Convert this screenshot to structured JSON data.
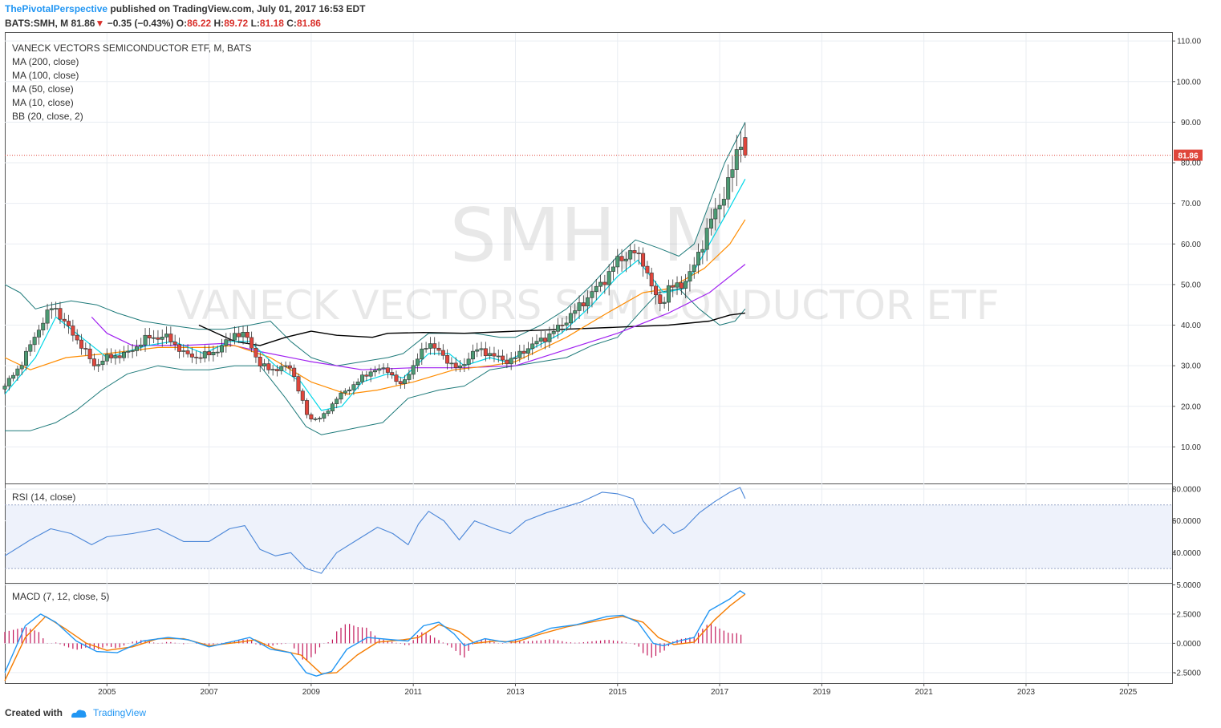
{
  "header": {
    "author": "ThePivotalPerspective",
    "published": "published on TradingView.com, July 01, 2017 16:53 EDT"
  },
  "ohlc": {
    "symbol": "BATS:SMH, M",
    "last": "81.86",
    "arrow": "▼",
    "change": "−0.35 (−0.43%)",
    "o_label": "O:",
    "o": "86.22",
    "h_label": "H:",
    "h": "89.72",
    "l_label": "L:",
    "l": "81.18",
    "c_label": "C:",
    "c": "81.86"
  },
  "footer": {
    "created": "Created with",
    "brand": "TradingView"
  },
  "chart_data": {
    "type": "candlestick",
    "legend": {
      "title": "VANECK VECTORS SEMICONDUCTOR ETF, M, BATS",
      "indicators": [
        "MA (200, close)",
        "MA (100, close)",
        "MA (50, close)",
        "MA (10, close)",
        "BB (20, close, 2)"
      ]
    },
    "watermark": {
      "symbol": "SMH, M",
      "name": "VANECK VECTORS SEMICONDUCTOR ETF"
    },
    "x_axis": {
      "ticks": [
        2005,
        2007,
        2009,
        2011,
        2013,
        2015,
        2017,
        2019,
        2021,
        2023,
        2025
      ],
      "range": [
        2003.0,
        2025.86
      ]
    },
    "price_panel": {
      "y_ticks": [
        "110.00",
        "100.00",
        "90.00",
        "80.00",
        "70.00",
        "60.00",
        "50.00",
        "40.00",
        "30.00",
        "20.00",
        "10.00"
      ],
      "ylim": [
        1.0,
        112.0
      ],
      "last_price_label": "81.86",
      "anchors": [
        [
          2003.0,
          25
        ],
        [
          2003.3,
          30
        ],
        [
          2003.7,
          40
        ],
        [
          2003.95,
          45
        ],
        [
          2004.2,
          40
        ],
        [
          2004.5,
          35
        ],
        [
          2004.75,
          30
        ],
        [
          2005.0,
          32
        ],
        [
          2005.4,
          33
        ],
        [
          2005.8,
          37
        ],
        [
          2006.2,
          37
        ],
        [
          2006.5,
          33
        ],
        [
          2006.8,
          32
        ],
        [
          2007.2,
          34
        ],
        [
          2007.5,
          38
        ],
        [
          2007.75,
          37
        ],
        [
          2008.0,
          30
        ],
        [
          2008.3,
          29
        ],
        [
          2008.6,
          30
        ],
        [
          2008.8,
          22
        ],
        [
          2008.95,
          17
        ],
        [
          2009.2,
          17
        ],
        [
          2009.5,
          22
        ],
        [
          2009.8,
          25
        ],
        [
          2010.2,
          29
        ],
        [
          2010.5,
          29
        ],
        [
          2010.75,
          25
        ],
        [
          2011.0,
          30
        ],
        [
          2011.3,
          36
        ],
        [
          2011.6,
          32
        ],
        [
          2011.9,
          29
        ],
        [
          2012.2,
          34
        ],
        [
          2012.5,
          33
        ],
        [
          2012.8,
          31
        ],
        [
          2013.0,
          32
        ],
        [
          2013.3,
          35
        ],
        [
          2013.6,
          37
        ],
        [
          2013.9,
          40
        ],
        [
          2014.2,
          44
        ],
        [
          2014.5,
          48
        ],
        [
          2014.8,
          52
        ],
        [
          2015.0,
          56
        ],
        [
          2015.3,
          58
        ],
        [
          2015.5,
          56
        ],
        [
          2015.7,
          48
        ],
        [
          2015.85,
          45
        ],
        [
          2016.0,
          49
        ],
        [
          2016.25,
          50
        ],
        [
          2016.45,
          53
        ],
        [
          2016.6,
          58
        ],
        [
          2016.8,
          65
        ],
        [
          2017.0,
          70
        ],
        [
          2017.2,
          76
        ],
        [
          2017.35,
          83
        ],
        [
          2017.42,
          86
        ],
        [
          2017.5,
          81.86
        ]
      ],
      "ma200": [
        [
          2006.8,
          40
        ],
        [
          2007.5,
          36
        ],
        [
          2008.0,
          35
        ],
        [
          2008.5,
          37
        ],
        [
          2009.0,
          38.5
        ],
        [
          2009.5,
          37.5
        ],
        [
          2010.2,
          37
        ],
        [
          2010.5,
          38
        ],
        [
          2011.2,
          38.2
        ],
        [
          2012.0,
          38
        ],
        [
          2013.0,
          38.5
        ],
        [
          2014.0,
          39
        ],
        [
          2015.0,
          39.5
        ],
        [
          2016.0,
          40
        ],
        [
          2016.8,
          41
        ],
        [
          2017.2,
          42.5
        ],
        [
          2017.5,
          43
        ]
      ],
      "ma100": [
        [
          2004.7,
          42
        ],
        [
          2005.0,
          38
        ],
        [
          2005.5,
          35
        ],
        [
          2006.5,
          35
        ],
        [
          2007.3,
          35.5
        ],
        [
          2008.0,
          33.5
        ],
        [
          2009.0,
          31
        ],
        [
          2010.0,
          29
        ],
        [
          2011.0,
          29.5
        ],
        [
          2012.0,
          29.5
        ],
        [
          2013.0,
          30
        ],
        [
          2014.0,
          34
        ],
        [
          2015.0,
          38
        ],
        [
          2016.0,
          43
        ],
        [
          2016.8,
          48
        ],
        [
          2017.5,
          55
        ]
      ],
      "ma50": [
        [
          2003.0,
          32
        ],
        [
          2003.5,
          29
        ],
        [
          2004.2,
          32
        ],
        [
          2005.0,
          33
        ],
        [
          2006.0,
          34.5
        ],
        [
          2007.0,
          34.5
        ],
        [
          2007.5,
          35
        ],
        [
          2008.2,
          32
        ],
        [
          2009.0,
          26
        ],
        [
          2009.7,
          23
        ],
        [
          2010.3,
          24
        ],
        [
          2011.0,
          26
        ],
        [
          2011.8,
          29
        ],
        [
          2012.5,
          30
        ],
        [
          2013.0,
          31
        ],
        [
          2014.0,
          37
        ],
        [
          2014.8,
          43
        ],
        [
          2015.5,
          48
        ],
        [
          2016.0,
          49
        ],
        [
          2016.7,
          54
        ],
        [
          2017.2,
          60
        ],
        [
          2017.5,
          66
        ]
      ],
      "ma10": [
        [
          2003.0,
          23
        ],
        [
          2003.6,
          32
        ],
        [
          2004.0,
          42
        ],
        [
          2004.5,
          37
        ],
        [
          2005.0,
          32
        ],
        [
          2005.8,
          35
        ],
        [
          2006.3,
          36
        ],
        [
          2006.9,
          33
        ],
        [
          2007.4,
          36
        ],
        [
          2007.8,
          36
        ],
        [
          2008.3,
          30
        ],
        [
          2008.8,
          26
        ],
        [
          2009.2,
          19
        ],
        [
          2009.6,
          20
        ],
        [
          2010.0,
          26
        ],
        [
          2010.5,
          28
        ],
        [
          2010.8,
          27
        ],
        [
          2011.3,
          33
        ],
        [
          2011.7,
          33
        ],
        [
          2012.0,
          30
        ],
        [
          2012.5,
          32
        ],
        [
          2012.8,
          31
        ],
        [
          2013.3,
          34
        ],
        [
          2013.9,
          38
        ],
        [
          2014.5,
          45
        ],
        [
          2015.0,
          52
        ],
        [
          2015.4,
          56
        ],
        [
          2015.9,
          48
        ],
        [
          2016.3,
          49
        ],
        [
          2016.8,
          60
        ],
        [
          2017.2,
          69
        ],
        [
          2017.5,
          76
        ]
      ],
      "bb_upper": [
        [
          2003.0,
          50
        ],
        [
          2003.3,
          48
        ],
        [
          2003.6,
          44
        ],
        [
          2003.9,
          45
        ],
        [
          2004.3,
          46
        ],
        [
          2004.8,
          45
        ],
        [
          2005.2,
          43
        ],
        [
          2005.7,
          41
        ],
        [
          2006.2,
          40
        ],
        [
          2006.8,
          39
        ],
        [
          2007.3,
          39
        ],
        [
          2007.8,
          40
        ],
        [
          2008.2,
          41
        ],
        [
          2008.6,
          36
        ],
        [
          2009.0,
          32
        ],
        [
          2009.5,
          30
        ],
        [
          2010.0,
          31
        ],
        [
          2010.5,
          32
        ],
        [
          2010.8,
          33
        ],
        [
          2011.3,
          38
        ],
        [
          2011.8,
          38
        ],
        [
          2012.2,
          38
        ],
        [
          2012.7,
          37
        ],
        [
          2013.0,
          37
        ],
        [
          2013.5,
          40
        ],
        [
          2014.0,
          44
        ],
        [
          2014.5,
          50
        ],
        [
          2015.0,
          57
        ],
        [
          2015.35,
          61
        ],
        [
          2015.8,
          59
        ],
        [
          2016.2,
          57
        ],
        [
          2016.5,
          60
        ],
        [
          2016.8,
          70
        ],
        [
          2017.1,
          80
        ],
        [
          2017.5,
          90
        ]
      ],
      "bb_lower": [
        [
          2003.0,
          14
        ],
        [
          2003.5,
          14
        ],
        [
          2004.0,
          16
        ],
        [
          2004.4,
          19
        ],
        [
          2004.9,
          24
        ],
        [
          2005.4,
          28
        ],
        [
          2006.0,
          30
        ],
        [
          2006.5,
          29
        ],
        [
          2007.0,
          29
        ],
        [
          2007.5,
          30
        ],
        [
          2008.0,
          30
        ],
        [
          2008.5,
          22
        ],
        [
          2008.9,
          15
        ],
        [
          2009.2,
          13
        ],
        [
          2009.6,
          14
        ],
        [
          2010.0,
          15
        ],
        [
          2010.4,
          16
        ],
        [
          2010.9,
          22
        ],
        [
          2011.5,
          24
        ],
        [
          2012.0,
          25
        ],
        [
          2012.5,
          29
        ],
        [
          2013.0,
          30
        ],
        [
          2013.5,
          31
        ],
        [
          2014.0,
          32
        ],
        [
          2014.5,
          35
        ],
        [
          2015.0,
          37
        ],
        [
          2015.5,
          44
        ],
        [
          2015.8,
          48
        ],
        [
          2016.2,
          49
        ],
        [
          2016.6,
          44
        ],
        [
          2017.0,
          40
        ],
        [
          2017.3,
          41
        ],
        [
          2017.5,
          44
        ]
      ]
    },
    "rsi_panel": {
      "label": "RSI (14, close)",
      "y_ticks": [
        "80.0000",
        "60.0000",
        "40.0000"
      ],
      "ylim": [
        21.0,
        83.0
      ],
      "band": [
        30,
        70
      ],
      "values": [
        [
          2003.0,
          38
        ],
        [
          2003.5,
          48
        ],
        [
          2003.9,
          55
        ],
        [
          2004.3,
          52
        ],
        [
          2004.7,
          45
        ],
        [
          2005.0,
          50
        ],
        [
          2005.5,
          52
        ],
        [
          2006.0,
          55
        ],
        [
          2006.5,
          47
        ],
        [
          2007.0,
          47
        ],
        [
          2007.4,
          55
        ],
        [
          2007.7,
          57
        ],
        [
          2008.0,
          42
        ],
        [
          2008.3,
          38
        ],
        [
          2008.6,
          40
        ],
        [
          2008.9,
          30
        ],
        [
          2009.2,
          27
        ],
        [
          2009.5,
          40
        ],
        [
          2009.9,
          48
        ],
        [
          2010.3,
          56
        ],
        [
          2010.6,
          52
        ],
        [
          2010.9,
          45
        ],
        [
          2011.1,
          58
        ],
        [
          2011.3,
          66
        ],
        [
          2011.6,
          60
        ],
        [
          2011.9,
          48
        ],
        [
          2012.2,
          60
        ],
        [
          2012.6,
          55
        ],
        [
          2012.9,
          52
        ],
        [
          2013.2,
          60
        ],
        [
          2013.6,
          65
        ],
        [
          2013.9,
          68
        ],
        [
          2014.3,
          72
        ],
        [
          2014.7,
          78
        ],
        [
          2015.0,
          77
        ],
        [
          2015.3,
          74
        ],
        [
          2015.5,
          60
        ],
        [
          2015.7,
          52
        ],
        [
          2015.9,
          58
        ],
        [
          2016.1,
          52
        ],
        [
          2016.3,
          55
        ],
        [
          2016.6,
          65
        ],
        [
          2016.9,
          72
        ],
        [
          2017.2,
          78
        ],
        [
          2017.4,
          81
        ],
        [
          2017.5,
          74
        ]
      ]
    },
    "macd_panel": {
      "label": "MACD (7, 12, close, 5)",
      "y_ticks": [
        "5.0000",
        "2.5000",
        "0.0000",
        "-2.5000"
      ],
      "ylim": [
        -3.4,
        5.1
      ],
      "macd": [
        [
          2003.0,
          -2.5
        ],
        [
          2003.4,
          1.5
        ],
        [
          2003.7,
          2.5
        ],
        [
          2004.0,
          1.8
        ],
        [
          2004.4,
          0.2
        ],
        [
          2004.8,
          -0.7
        ],
        [
          2005.2,
          -0.8
        ],
        [
          2005.7,
          0.2
        ],
        [
          2006.2,
          0.5
        ],
        [
          2006.6,
          0.3
        ],
        [
          2007.0,
          -0.3
        ],
        [
          2007.5,
          0.2
        ],
        [
          2007.8,
          0.5
        ],
        [
          2008.2,
          -0.5
        ],
        [
          2008.6,
          -0.8
        ],
        [
          2008.9,
          -2.5
        ],
        [
          2009.1,
          -2.8
        ],
        [
          2009.4,
          -2.4
        ],
        [
          2009.7,
          -0.5
        ],
        [
          2010.1,
          0.5
        ],
        [
          2010.6,
          0.3
        ],
        [
          2010.9,
          0.2
        ],
        [
          2011.2,
          1.5
        ],
        [
          2011.5,
          1.8
        ],
        [
          2011.8,
          0.8
        ],
        [
          2012.0,
          -0.2
        ],
        [
          2012.4,
          0.4
        ],
        [
          2012.8,
          0.1
        ],
        [
          2013.2,
          0.5
        ],
        [
          2013.7,
          1.3
        ],
        [
          2014.2,
          1.6
        ],
        [
          2014.8,
          2.3
        ],
        [
          2015.1,
          2.4
        ],
        [
          2015.4,
          1.8
        ],
        [
          2015.7,
          0.0
        ],
        [
          2015.9,
          -0.2
        ],
        [
          2016.2,
          0.2
        ],
        [
          2016.5,
          0.5
        ],
        [
          2016.8,
          2.8
        ],
        [
          2017.2,
          3.8
        ],
        [
          2017.4,
          4.5
        ],
        [
          2017.5,
          4.2
        ]
      ],
      "signal": [
        [
          2003.0,
          -3.2
        ],
        [
          2003.4,
          0.5
        ],
        [
          2003.8,
          2.3
        ],
        [
          2004.2,
          1.2
        ],
        [
          2004.6,
          0.0
        ],
        [
          2005.0,
          -0.6
        ],
        [
          2005.5,
          -0.3
        ],
        [
          2006.0,
          0.4
        ],
        [
          2006.5,
          0.4
        ],
        [
          2007.0,
          -0.2
        ],
        [
          2007.6,
          0.1
        ],
        [
          2007.9,
          0.3
        ],
        [
          2008.3,
          -0.5
        ],
        [
          2008.8,
          -1.0
        ],
        [
          2009.2,
          -2.6
        ],
        [
          2009.5,
          -2.5
        ],
        [
          2009.9,
          -1.0
        ],
        [
          2010.3,
          0.1
        ],
        [
          2010.8,
          0.3
        ],
        [
          2011.1,
          0.5
        ],
        [
          2011.5,
          1.6
        ],
        [
          2011.9,
          1.0
        ],
        [
          2012.2,
          0.0
        ],
        [
          2012.6,
          0.2
        ],
        [
          2013.0,
          0.1
        ],
        [
          2013.5,
          0.8
        ],
        [
          2014.0,
          1.4
        ],
        [
          2014.7,
          2.0
        ],
        [
          2015.1,
          2.3
        ],
        [
          2015.5,
          1.8
        ],
        [
          2015.8,
          0.5
        ],
        [
          2016.1,
          -0.1
        ],
        [
          2016.5,
          0.1
        ],
        [
          2016.9,
          2.0
        ],
        [
          2017.2,
          3.2
        ],
        [
          2017.5,
          4.2
        ]
      ]
    }
  }
}
